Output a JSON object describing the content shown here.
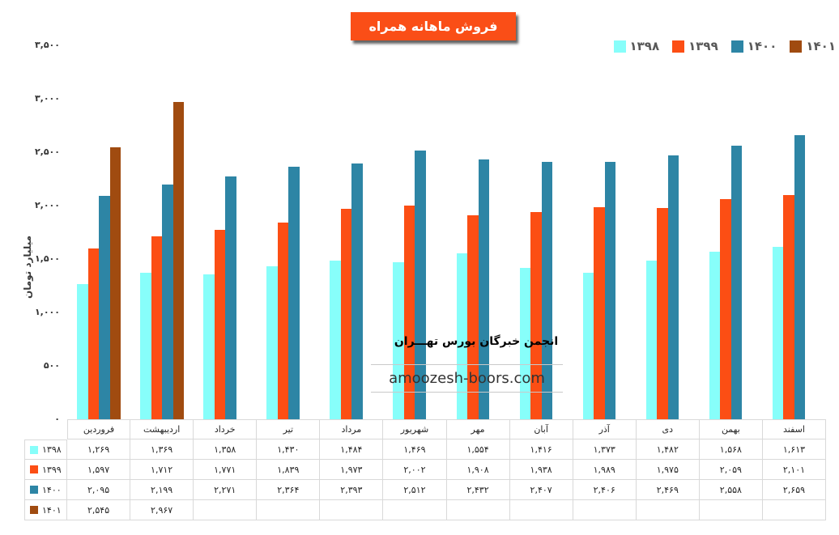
{
  "title": {
    "text": "فروش ماهانه همراه",
    "bg_color": "#FA4E17",
    "text_color": "#FFFFFF"
  },
  "legend": {
    "position": "top-right",
    "items": [
      {
        "label": "۱۳۹۸",
        "color": "#87FEFA"
      },
      {
        "label": "۱۳۹۹",
        "color": "#FC4E14"
      },
      {
        "label": "۱۴۰۰",
        "color": "#2D85A5"
      },
      {
        "label": "۱۴۰۱",
        "color": "#A04B10"
      }
    ]
  },
  "y_axis": {
    "title": "میلیارد تومان",
    "tick_labels": [
      "۰",
      "۵۰۰",
      "۱,۰۰۰",
      "۱,۵۰۰",
      "۲,۰۰۰",
      "۲,۵۰۰",
      "۳,۰۰۰",
      "۳,۵۰۰"
    ]
  },
  "x_axis": {
    "months": [
      "فروردین",
      "اردیبهشت",
      "خرداد",
      "تیر",
      "مرداد",
      "شهریور",
      "مهر",
      "آبان",
      "آذر",
      "دی",
      "بهمن",
      "اسفند"
    ]
  },
  "watermark": {
    "line1": "انجمن خبرگان بورس تهـــران",
    "line2": "amoozesh-boors.com"
  },
  "table": {
    "rows": [
      {
        "year": "۱۳۹۸",
        "color": "#87FEFA",
        "cells": [
          "۱,۲۶۹",
          "۱,۳۶۹",
          "۱,۳۵۸",
          "۱,۴۳۰",
          "۱,۴۸۴",
          "۱,۴۶۹",
          "۱,۵۵۴",
          "۱,۴۱۶",
          "۱,۳۷۳",
          "۱,۴۸۲",
          "۱,۵۶۸",
          "۱,۶۱۳"
        ]
      },
      {
        "year": "۱۳۹۹",
        "color": "#FC4E14",
        "cells": [
          "۱,۵۹۷",
          "۱,۷۱۲",
          "۱,۷۷۱",
          "۱,۸۳۹",
          "۱,۹۷۳",
          "۲,۰۰۲",
          "۱,۹۰۸",
          "۱,۹۳۸",
          "۱,۹۸۹",
          "۱,۹۷۵",
          "۲,۰۵۹",
          "۲,۱۰۱"
        ]
      },
      {
        "year": "۱۴۰۰",
        "color": "#2D85A5",
        "cells": [
          "۲,۰۹۵",
          "۲,۱۹۹",
          "۲,۲۷۱",
          "۲,۳۶۴",
          "۲,۳۹۳",
          "۲,۵۱۲",
          "۲,۴۳۲",
          "۲,۴۰۷",
          "۲,۴۰۶",
          "۲,۴۶۹",
          "۲,۵۵۸",
          "۲,۶۵۹"
        ]
      },
      {
        "year": "۱۴۰۱",
        "color": "#A04B10",
        "cells": [
          "۲,۵۴۵",
          "۲,۹۶۷",
          "",
          "",
          "",
          "",
          "",
          "",
          "",
          "",
          "",
          ""
        ]
      }
    ]
  },
  "chart_data": {
    "type": "bar",
    "title": "فروش ماهانه همراه",
    "xlabel": "",
    "ylabel": "میلیارد تومان",
    "ylim": [
      0,
      3500
    ],
    "y_tick_step": 500,
    "grid": false,
    "legend_position": "top-right",
    "categories": [
      "فروردین",
      "اردیبهشت",
      "خرداد",
      "تیر",
      "مرداد",
      "شهریور",
      "مهر",
      "آبان",
      "آذر",
      "دی",
      "بهمن",
      "اسفند"
    ],
    "series": [
      {
        "name": "۱۳۹۸",
        "color": "#87FEFA",
        "values": [
          1269,
          1369,
          1358,
          1430,
          1484,
          1469,
          1554,
          1416,
          1373,
          1482,
          1568,
          1613
        ]
      },
      {
        "name": "۱۳۹۹",
        "color": "#FC4E14",
        "values": [
          1597,
          1712,
          1771,
          1839,
          1973,
          2002,
          1908,
          1938,
          1989,
          1975,
          2059,
          2101
        ]
      },
      {
        "name": "۱۴۰۰",
        "color": "#2D85A5",
        "values": [
          2095,
          2199,
          2271,
          2364,
          2393,
          2512,
          2432,
          2407,
          2406,
          2469,
          2558,
          2659
        ]
      },
      {
        "name": "۱۴۰۱",
        "color": "#A04B10",
        "values": [
          2545,
          2967,
          null,
          null,
          null,
          null,
          null,
          null,
          null,
          null,
          null,
          null
        ]
      }
    ]
  }
}
